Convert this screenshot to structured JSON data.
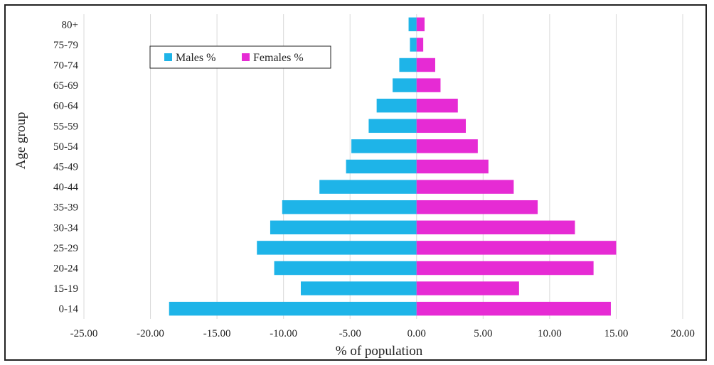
{
  "chart_data": {
    "type": "bar",
    "orientation": "horizontal",
    "title": "",
    "xlabel": "% of population",
    "ylabel": "Age group",
    "xlim": [
      -25,
      20
    ],
    "x_ticks": [
      "-25.00",
      "-20.00",
      "-15.00",
      "-10.00",
      "-5.00",
      "0.00",
      "5.00",
      "10.00",
      "15.00",
      "20.00"
    ],
    "x_tick_values": [
      -25,
      -20,
      -15,
      -10,
      -5,
      0,
      5,
      10,
      15,
      20
    ],
    "categories": [
      "0-14",
      "15-19",
      "20-24",
      "25-29",
      "30-34",
      "35-39",
      "40-44",
      "45-49",
      "50-54",
      "55-59",
      "60-64",
      "65-69",
      "70-74",
      "75-79",
      "80+"
    ],
    "series": [
      {
        "name": "Males %",
        "color": "#1eb4e8",
        "values": [
          -18.6,
          -8.7,
          -10.7,
          -12.0,
          -11.0,
          -10.1,
          -7.3,
          -5.3,
          -4.9,
          -3.6,
          -3.0,
          -1.8,
          -1.3,
          -0.5,
          -0.6
        ]
      },
      {
        "name": "Females %",
        "color": "#e62bd4",
        "values": [
          14.6,
          7.7,
          13.3,
          15.0,
          11.9,
          9.1,
          7.3,
          5.4,
          4.6,
          3.7,
          3.1,
          1.8,
          1.4,
          0.5,
          0.6
        ]
      }
    ],
    "grid": "vertical",
    "legend_position": "top-left"
  }
}
